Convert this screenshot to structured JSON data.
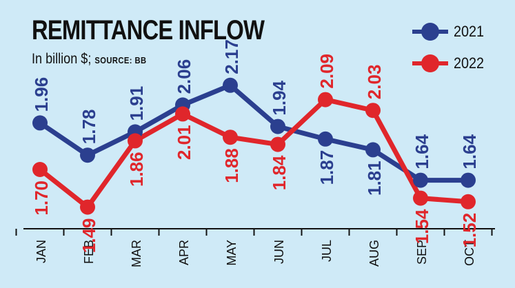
{
  "header": {
    "title": "REMITTANCE INFLOW",
    "subtitle": "In billion $;",
    "source": "SOURCE: BB"
  },
  "colors": {
    "background": "#cfeaf7",
    "series_2021": "#2b3f8f",
    "series_2022": "#e0262b",
    "axis": "#111111"
  },
  "chart_data": {
    "type": "line",
    "title": "REMITTANCE INFLOW",
    "ylabel": "In billion $",
    "ylim": [
      1.0,
      2.4
    ],
    "grid": false,
    "legend": "top-right",
    "categories": [
      "JAN",
      "FEB",
      "MAR",
      "APR",
      "MAY",
      "JUN",
      "JUL",
      "AUG",
      "SEP",
      "OCT"
    ],
    "series": [
      {
        "name": "2021",
        "color": "#2b3f8f",
        "values": [
          1.96,
          1.78,
          1.91,
          2.06,
          2.17,
          1.94,
          1.87,
          1.81,
          1.64,
          1.64
        ],
        "labels": [
          "1.96",
          "1.78",
          "1.91",
          "2.06",
          "2.17",
          "1.94",
          "1.87",
          "1.81",
          "1.64",
          "1.64"
        ]
      },
      {
        "name": "2022",
        "color": "#e0262b",
        "values": [
          1.7,
          1.49,
          1.86,
          2.01,
          1.88,
          1.84,
          2.09,
          2.03,
          1.54,
          1.52
        ],
        "labels": [
          "1.70",
          "1.49",
          "1.86",
          "2.01",
          "1.88",
          "1.84",
          "2.09",
          "2.03",
          "1.54",
          "1.52"
        ]
      }
    ]
  }
}
